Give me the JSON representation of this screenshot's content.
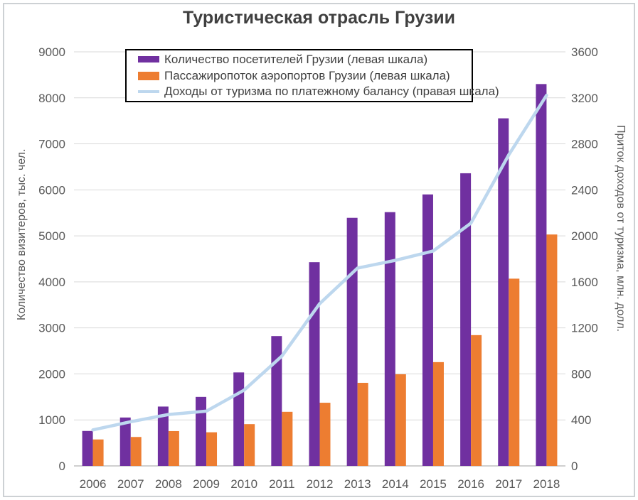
{
  "title": "Туристическая отрасль Грузии",
  "chart_data": {
    "type": "combo-bar-line",
    "grid": true,
    "legend_position": "top",
    "categories": [
      "2006",
      "2007",
      "2008",
      "2009",
      "2010",
      "2011",
      "2012",
      "2013",
      "2014",
      "2015",
      "2016",
      "2017",
      "2018"
    ],
    "series": [
      {
        "name": "Количество посетителей Грузии (левая шкала)",
        "type": "bar",
        "axis": "left",
        "color": "#7030A0",
        "values": [
          760,
          1052,
          1290,
          1500,
          2032,
          2822,
          4428,
          5392,
          5516,
          5901,
          6361,
          7555,
          8300
        ]
      },
      {
        "name": "Пассажиропоток аэропортов Грузии (левая шкала)",
        "type": "bar",
        "axis": "left",
        "color": "#ED7D31",
        "values": [
          575,
          629,
          757,
          731,
          908,
          1176,
          1373,
          1806,
          1992,
          2256,
          2843,
          4070,
          5030
        ]
      },
      {
        "name": "Доходы от туризма по платежному балансу (правая шкала)",
        "type": "line",
        "axis": "right",
        "color": "#BDD7EE",
        "values": [
          313,
          384,
          447,
          476,
          659,
          955,
          1411,
          1720,
          1787,
          1868,
          2111,
          2704,
          3222
        ]
      }
    ],
    "left_axis": {
      "title": "Количество визитеров, тыс. чел.",
      "min": 0,
      "max": 9000,
      "step": 1000,
      "ticks": [
        0,
        1000,
        2000,
        3000,
        4000,
        5000,
        6000,
        7000,
        8000,
        9000
      ]
    },
    "right_axis": {
      "title": "Приток доходов от туризма, млн. долл.",
      "min": 0,
      "max": 3600,
      "step": 400,
      "ticks": [
        0,
        400,
        800,
        1200,
        1600,
        2000,
        2400,
        2800,
        3200,
        3600
      ]
    },
    "colors": {
      "gridline": "#d9d9d9",
      "axis_line": "#bfbfbf",
      "tick_label": "#595959",
      "title_text": "#404040",
      "legend_border": "#000000",
      "frame_border": "#cdd1d4",
      "background": "#ffffff"
    }
  }
}
